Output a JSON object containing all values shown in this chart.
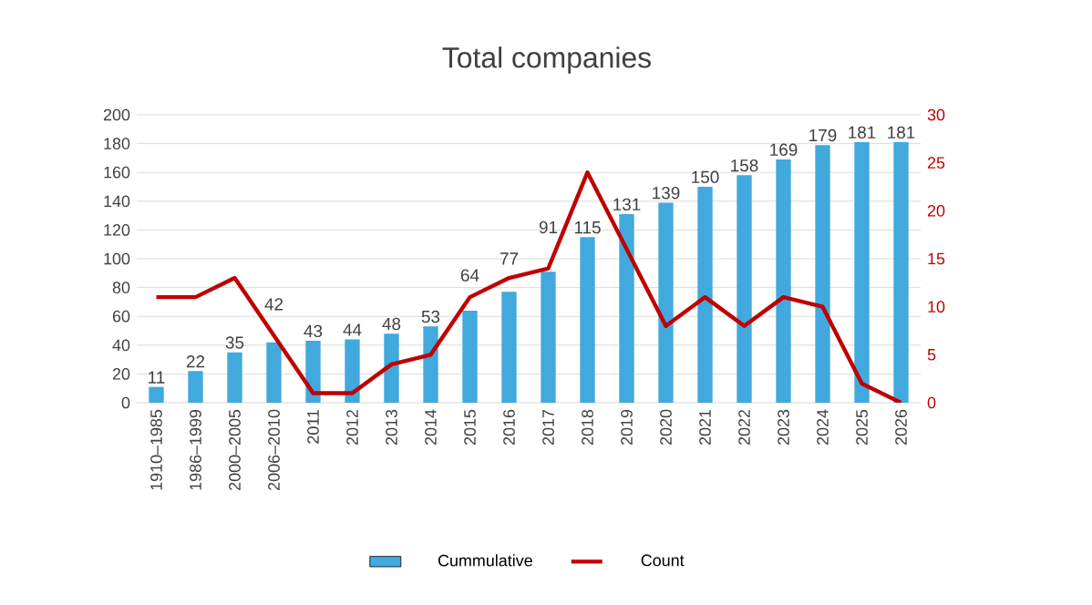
{
  "chart_data": {
    "type": "bar",
    "title": "Total companies",
    "categories": [
      "1910–1985",
      "1986–1999",
      "2000–2005",
      "2006–2010",
      "2011",
      "2012",
      "2013",
      "2014",
      "2015",
      "2016",
      "2017",
      "2018",
      "2019",
      "2020",
      "2021",
      "2022",
      "2023",
      "2024",
      "2025",
      "2026"
    ],
    "series": [
      {
        "name": "Cummulative",
        "type": "bar",
        "color": "#41a9dd",
        "values": [
          11,
          22,
          35,
          42,
          43,
          44,
          48,
          53,
          64,
          77,
          91,
          115,
          131,
          139,
          150,
          158,
          169,
          179,
          181,
          181
        ],
        "value_labels": [
          "11",
          "22",
          "35",
          "42",
          "43",
          "44",
          "48",
          "53",
          "64",
          "77",
          "91",
          "115",
          "131",
          "139",
          "150",
          "158",
          "169",
          "179",
          "181",
          "181"
        ]
      },
      {
        "name": "Count",
        "type": "line",
        "axis": "y2",
        "color": "#c00000",
        "values": [
          11,
          11,
          13,
          7,
          1,
          1,
          4,
          5,
          11,
          13,
          14,
          24,
          16,
          8,
          11,
          8,
          11,
          10,
          2,
          0
        ]
      }
    ],
    "ylim": [
      0,
      200
    ],
    "yticks": [
      0,
      20,
      40,
      60,
      80,
      100,
      120,
      140,
      160,
      180,
      200
    ],
    "y2lim": [
      0,
      30
    ],
    "y2ticks": [
      0,
      5,
      10,
      15,
      20,
      25,
      30
    ],
    "grid": "y",
    "legend": "bottom"
  }
}
